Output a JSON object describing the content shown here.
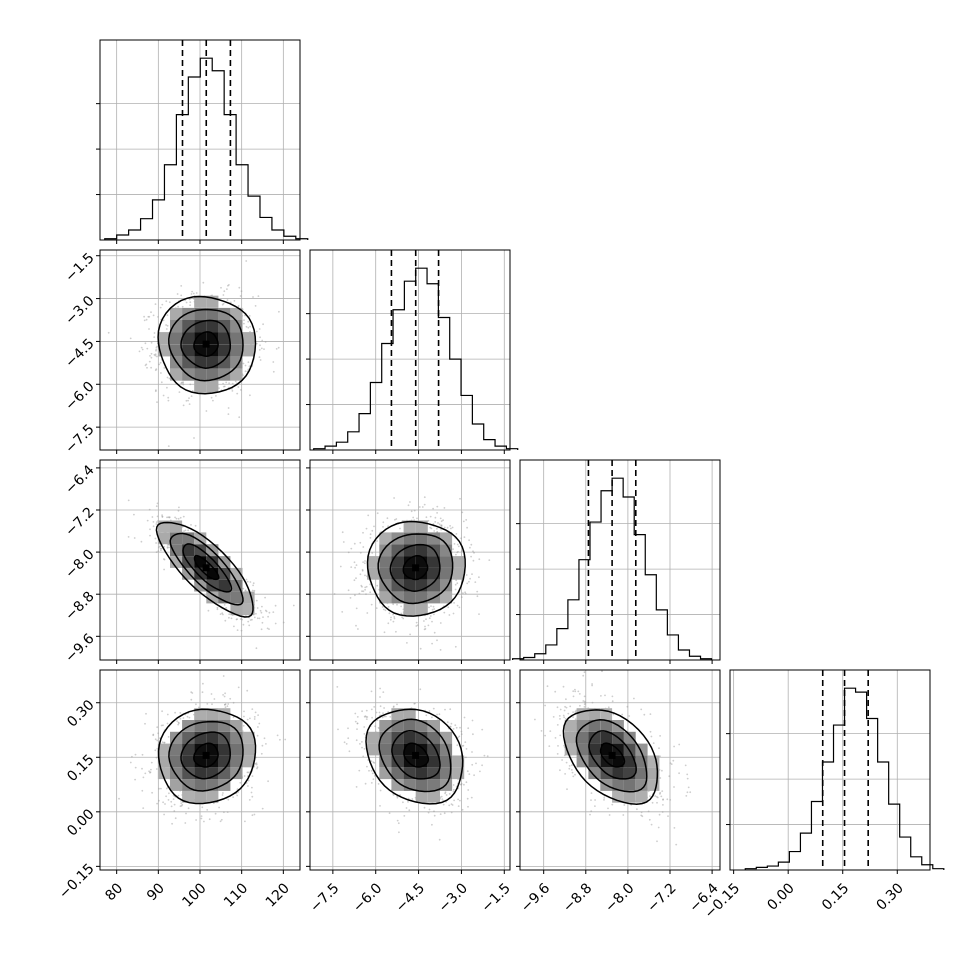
{
  "chart_data": {
    "type": "corner",
    "n_params": 4,
    "grid": true,
    "params": [
      {
        "range": [
          76,
          124
        ],
        "ticks": [
          80,
          90,
          100,
          110,
          120
        ],
        "tick_labels": [
          "80",
          "90",
          "100",
          "110",
          "120"
        ]
      },
      {
        "range": [
          -8.3,
          -1.3
        ],
        "ticks": [
          -7.5,
          -6.0,
          -4.5,
          -3.0,
          -1.5
        ],
        "tick_labels": [
          "−7.5",
          "−6.0",
          "−4.5",
          "−3.0",
          "−1.5"
        ]
      },
      {
        "range": [
          -10.05,
          -6.25
        ],
        "ticks": [
          -9.6,
          -8.8,
          -8.0,
          -7.2,
          -6.4
        ],
        "tick_labels": [
          "−9.6",
          "−8.8",
          "−8.0",
          "−7.2",
          "−6.4"
        ]
      },
      {
        "range": [
          -0.16,
          0.39
        ],
        "ticks": [
          -0.15,
          0.0,
          0.15,
          0.3
        ],
        "tick_labels": [
          "−0.15",
          "0.00",
          "0.15",
          "0.30"
        ]
      }
    ],
    "quantiles": [
      [
        95.8,
        101.5,
        107.3
      ],
      [
        -5.45,
        -4.6,
        -3.8
      ],
      [
        -8.75,
        -8.3,
        -7.85
      ],
      [
        0.095,
        0.155,
        0.22
      ]
    ],
    "histograms": [
      {
        "counts": [
          1,
          4,
          8,
          17,
          32,
          60,
          100,
          130,
          145,
          135,
          100,
          60,
          35,
          18,
          8,
          3,
          1
        ]
      },
      {
        "counts": [
          1,
          3,
          6,
          14,
          28,
          52,
          82,
          108,
          130,
          140,
          128,
          102,
          70,
          42,
          20,
          8,
          3,
          1
        ]
      },
      {
        "counts": [
          1,
          2,
          5,
          12,
          25,
          48,
          80,
          110,
          135,
          145,
          130,
          100,
          68,
          40,
          20,
          8,
          3,
          1
        ]
      },
      {
        "counts": [
          1,
          2,
          3,
          6,
          14,
          28,
          52,
          82,
          110,
          138,
          135,
          115,
          82,
          50,
          25,
          10,
          4,
          1
        ]
      }
    ],
    "correlations": [
      [
        1,
        0,
        -0.8,
        0.1
      ],
      [
        0,
        1,
        0.05,
        -0.25
      ],
      [
        -0.8,
        0.05,
        1,
        -0.45
      ],
      [
        0.1,
        -0.25,
        -0.45,
        1
      ]
    ],
    "modes": [
      101.5,
      -4.6,
      -8.3,
      0.155
    ],
    "sigmas": [
      5.8,
      0.85,
      0.45,
      0.065
    ]
  }
}
